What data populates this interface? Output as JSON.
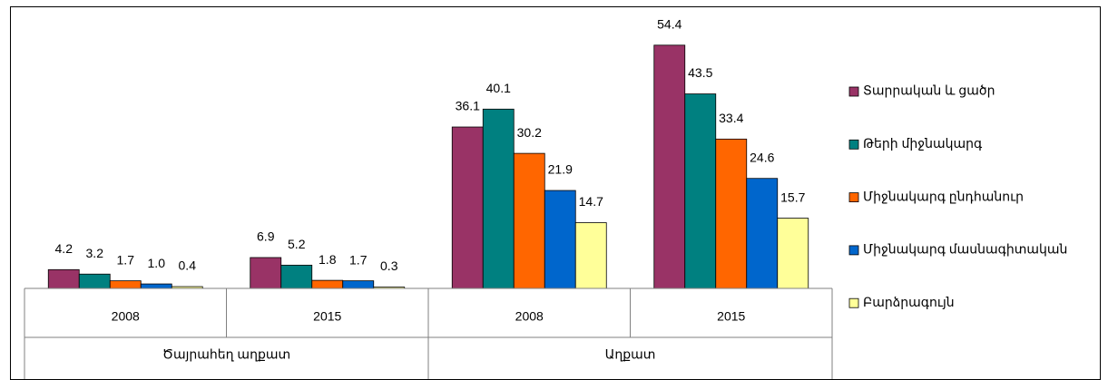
{
  "chart_data": {
    "type": "bar",
    "categories": [
      "2008",
      "2015",
      "2008",
      "2015"
    ],
    "groups": [
      {
        "name": "Ծայրահեղ աղքատ",
        "span": 2
      },
      {
        "name": "Աղքատ",
        "span": 2
      }
    ],
    "series": [
      {
        "name": "Տարրական և ցածր",
        "color": "#993366",
        "values": [
          4.2,
          6.9,
          36.1,
          54.4
        ]
      },
      {
        "name": "Թերի միջնակարգ",
        "color": "#008080",
        "values": [
          3.2,
          5.2,
          40.1,
          43.5
        ]
      },
      {
        "name": "Միջնակարգ ընդհանուր",
        "color": "#ff6600",
        "values": [
          1.7,
          1.8,
          30.2,
          33.4
        ]
      },
      {
        "name": "Միջնակարգ մասնագիտական",
        "color": "#0066cc",
        "values": [
          1.0,
          1.7,
          21.9,
          24.6
        ],
        "value_labels": [
          "1.0",
          "1.7",
          "21.9",
          "24.6"
        ]
      },
      {
        "name": "Բարձրագույն",
        "color": "#ffff99",
        "values": [
          0.4,
          0.3,
          14.7,
          15.7
        ]
      }
    ],
    "legend": "right"
  }
}
